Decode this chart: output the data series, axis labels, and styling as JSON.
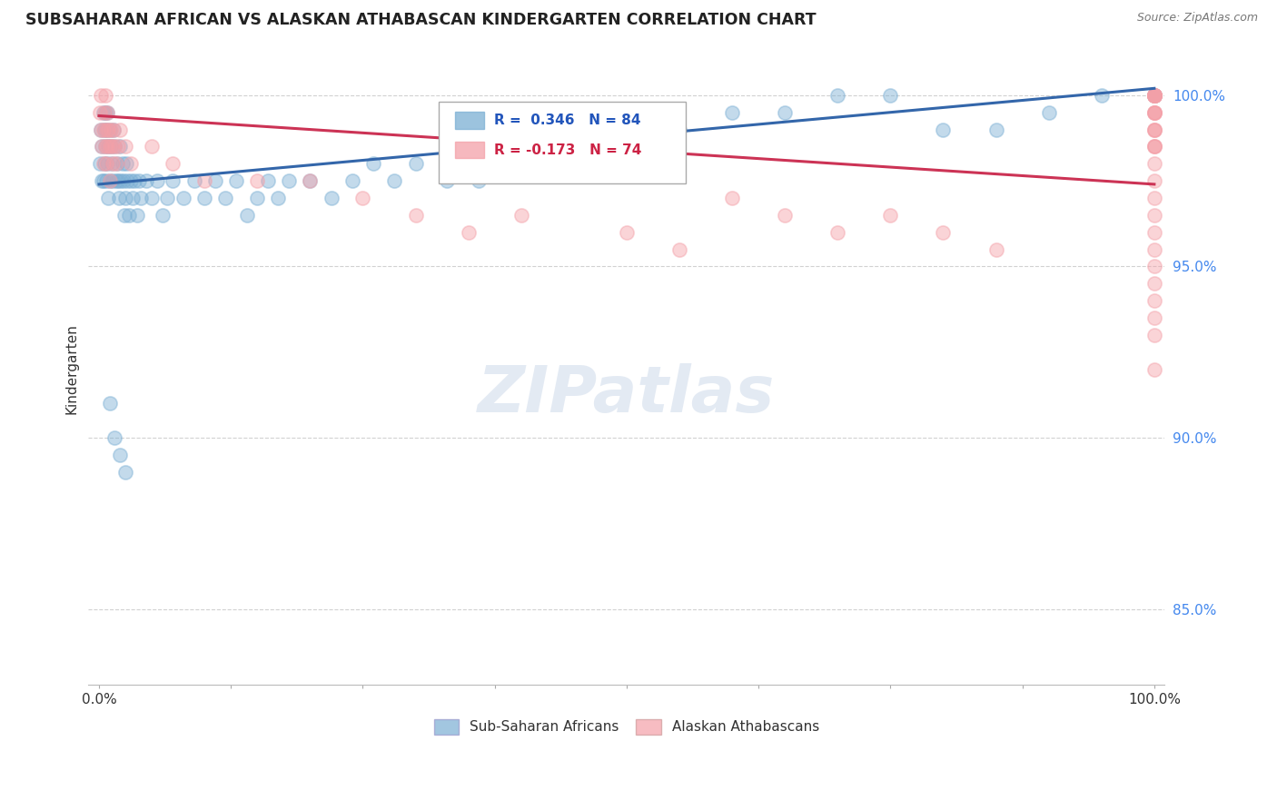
{
  "title": "SUBSAHARAN AFRICAN VS ALASKAN ATHABASCAN KINDERGARTEN CORRELATION CHART",
  "source": "Source: ZipAtlas.com",
  "ylabel": "Kindergarten",
  "ytick_labels": [
    "85.0%",
    "90.0%",
    "95.0%",
    "100.0%"
  ],
  "ytick_values": [
    0.85,
    0.9,
    0.95,
    1.0
  ],
  "xlim": [
    -0.01,
    1.01
  ],
  "ylim": [
    0.828,
    1.012
  ],
  "legend_blue_label": "Sub-Saharan Africans",
  "legend_pink_label": "Alaskan Athabascans",
  "R_blue": 0.346,
  "N_blue": 84,
  "R_pink": -0.173,
  "N_pink": 74,
  "blue_color": "#7BAFD4",
  "pink_color": "#F4A0A8",
  "trend_blue_color": "#3366AA",
  "trend_pink_color": "#CC3355",
  "trend_blue_y0": 0.974,
  "trend_blue_y1": 1.002,
  "trend_pink_y0": 0.994,
  "trend_pink_y1": 0.974,
  "blue_x": [
    0.001,
    0.002,
    0.003,
    0.003,
    0.004,
    0.004,
    0.005,
    0.005,
    0.006,
    0.006,
    0.007,
    0.007,
    0.008,
    0.008,
    0.009,
    0.009,
    0.01,
    0.01,
    0.011,
    0.012,
    0.013,
    0.014,
    0.015,
    0.016,
    0.017,
    0.018,
    0.019,
    0.02,
    0.021,
    0.022,
    0.023,
    0.024,
    0.025,
    0.026,
    0.027,
    0.028,
    0.03,
    0.032,
    0.034,
    0.036,
    0.038,
    0.04,
    0.045,
    0.05,
    0.055,
    0.06,
    0.065,
    0.07,
    0.08,
    0.09,
    0.1,
    0.11,
    0.12,
    0.13,
    0.14,
    0.15,
    0.16,
    0.17,
    0.18,
    0.2,
    0.22,
    0.24,
    0.26,
    0.28,
    0.3,
    0.33,
    0.36,
    0.4,
    0.45,
    0.5,
    0.55,
    0.6,
    0.65,
    0.7,
    0.75,
    0.8,
    0.85,
    0.9,
    0.95,
    1.0,
    0.01,
    0.015,
    0.02,
    0.025
  ],
  "blue_y": [
    0.98,
    0.99,
    0.985,
    0.975,
    0.995,
    0.975,
    0.99,
    0.98,
    0.985,
    0.995,
    0.975,
    0.99,
    0.98,
    0.995,
    0.985,
    0.97,
    0.975,
    0.99,
    0.985,
    0.98,
    0.975,
    0.99,
    0.985,
    0.975,
    0.98,
    0.975,
    0.97,
    0.985,
    0.975,
    0.98,
    0.975,
    0.965,
    0.97,
    0.98,
    0.975,
    0.965,
    0.975,
    0.97,
    0.975,
    0.965,
    0.975,
    0.97,
    0.975,
    0.97,
    0.975,
    0.965,
    0.97,
    0.975,
    0.97,
    0.975,
    0.97,
    0.975,
    0.97,
    0.975,
    0.965,
    0.97,
    0.975,
    0.97,
    0.975,
    0.975,
    0.97,
    0.975,
    0.98,
    0.975,
    0.98,
    0.975,
    0.975,
    0.98,
    0.985,
    0.99,
    0.99,
    0.995,
    0.995,
    1.0,
    1.0,
    0.99,
    0.99,
    0.995,
    1.0,
    1.0,
    0.91,
    0.9,
    0.895,
    0.89
  ],
  "pink_x": [
    0.001,
    0.002,
    0.002,
    0.003,
    0.004,
    0.004,
    0.005,
    0.006,
    0.006,
    0.007,
    0.007,
    0.008,
    0.008,
    0.009,
    0.01,
    0.01,
    0.011,
    0.012,
    0.013,
    0.014,
    0.015,
    0.016,
    0.018,
    0.02,
    0.025,
    0.03,
    0.05,
    0.07,
    0.1,
    0.15,
    0.2,
    0.25,
    0.3,
    0.35,
    0.4,
    0.5,
    0.55,
    0.6,
    0.65,
    0.7,
    0.75,
    0.8,
    0.85,
    1.0,
    1.0,
    1.0,
    1.0,
    1.0,
    1.0,
    1.0,
    1.0,
    1.0,
    1.0,
    1.0,
    1.0,
    1.0,
    1.0,
    1.0,
    1.0,
    1.0,
    1.0,
    1.0,
    1.0,
    1.0,
    1.0,
    1.0,
    1.0,
    1.0,
    1.0,
    1.0,
    1.0,
    1.0,
    1.0,
    1.0
  ],
  "pink_y": [
    0.995,
    0.99,
    1.0,
    0.985,
    0.99,
    0.98,
    0.995,
    0.985,
    1.0,
    0.99,
    0.98,
    0.995,
    0.985,
    0.99,
    0.985,
    0.975,
    0.99,
    0.985,
    0.98,
    0.99,
    0.985,
    0.98,
    0.985,
    0.99,
    0.985,
    0.98,
    0.985,
    0.98,
    0.975,
    0.975,
    0.975,
    0.97,
    0.965,
    0.96,
    0.965,
    0.96,
    0.955,
    0.97,
    0.965,
    0.96,
    0.965,
    0.96,
    0.955,
    1.0,
    1.0,
    1.0,
    1.0,
    1.0,
    1.0,
    1.0,
    1.0,
    1.0,
    0.995,
    0.995,
    0.995,
    0.99,
    0.99,
    0.985,
    0.985,
    0.98,
    0.995,
    0.99,
    0.985,
    0.975,
    0.97,
    0.965,
    0.96,
    0.955,
    0.95,
    0.945,
    0.94,
    0.935,
    0.93,
    0.92
  ]
}
